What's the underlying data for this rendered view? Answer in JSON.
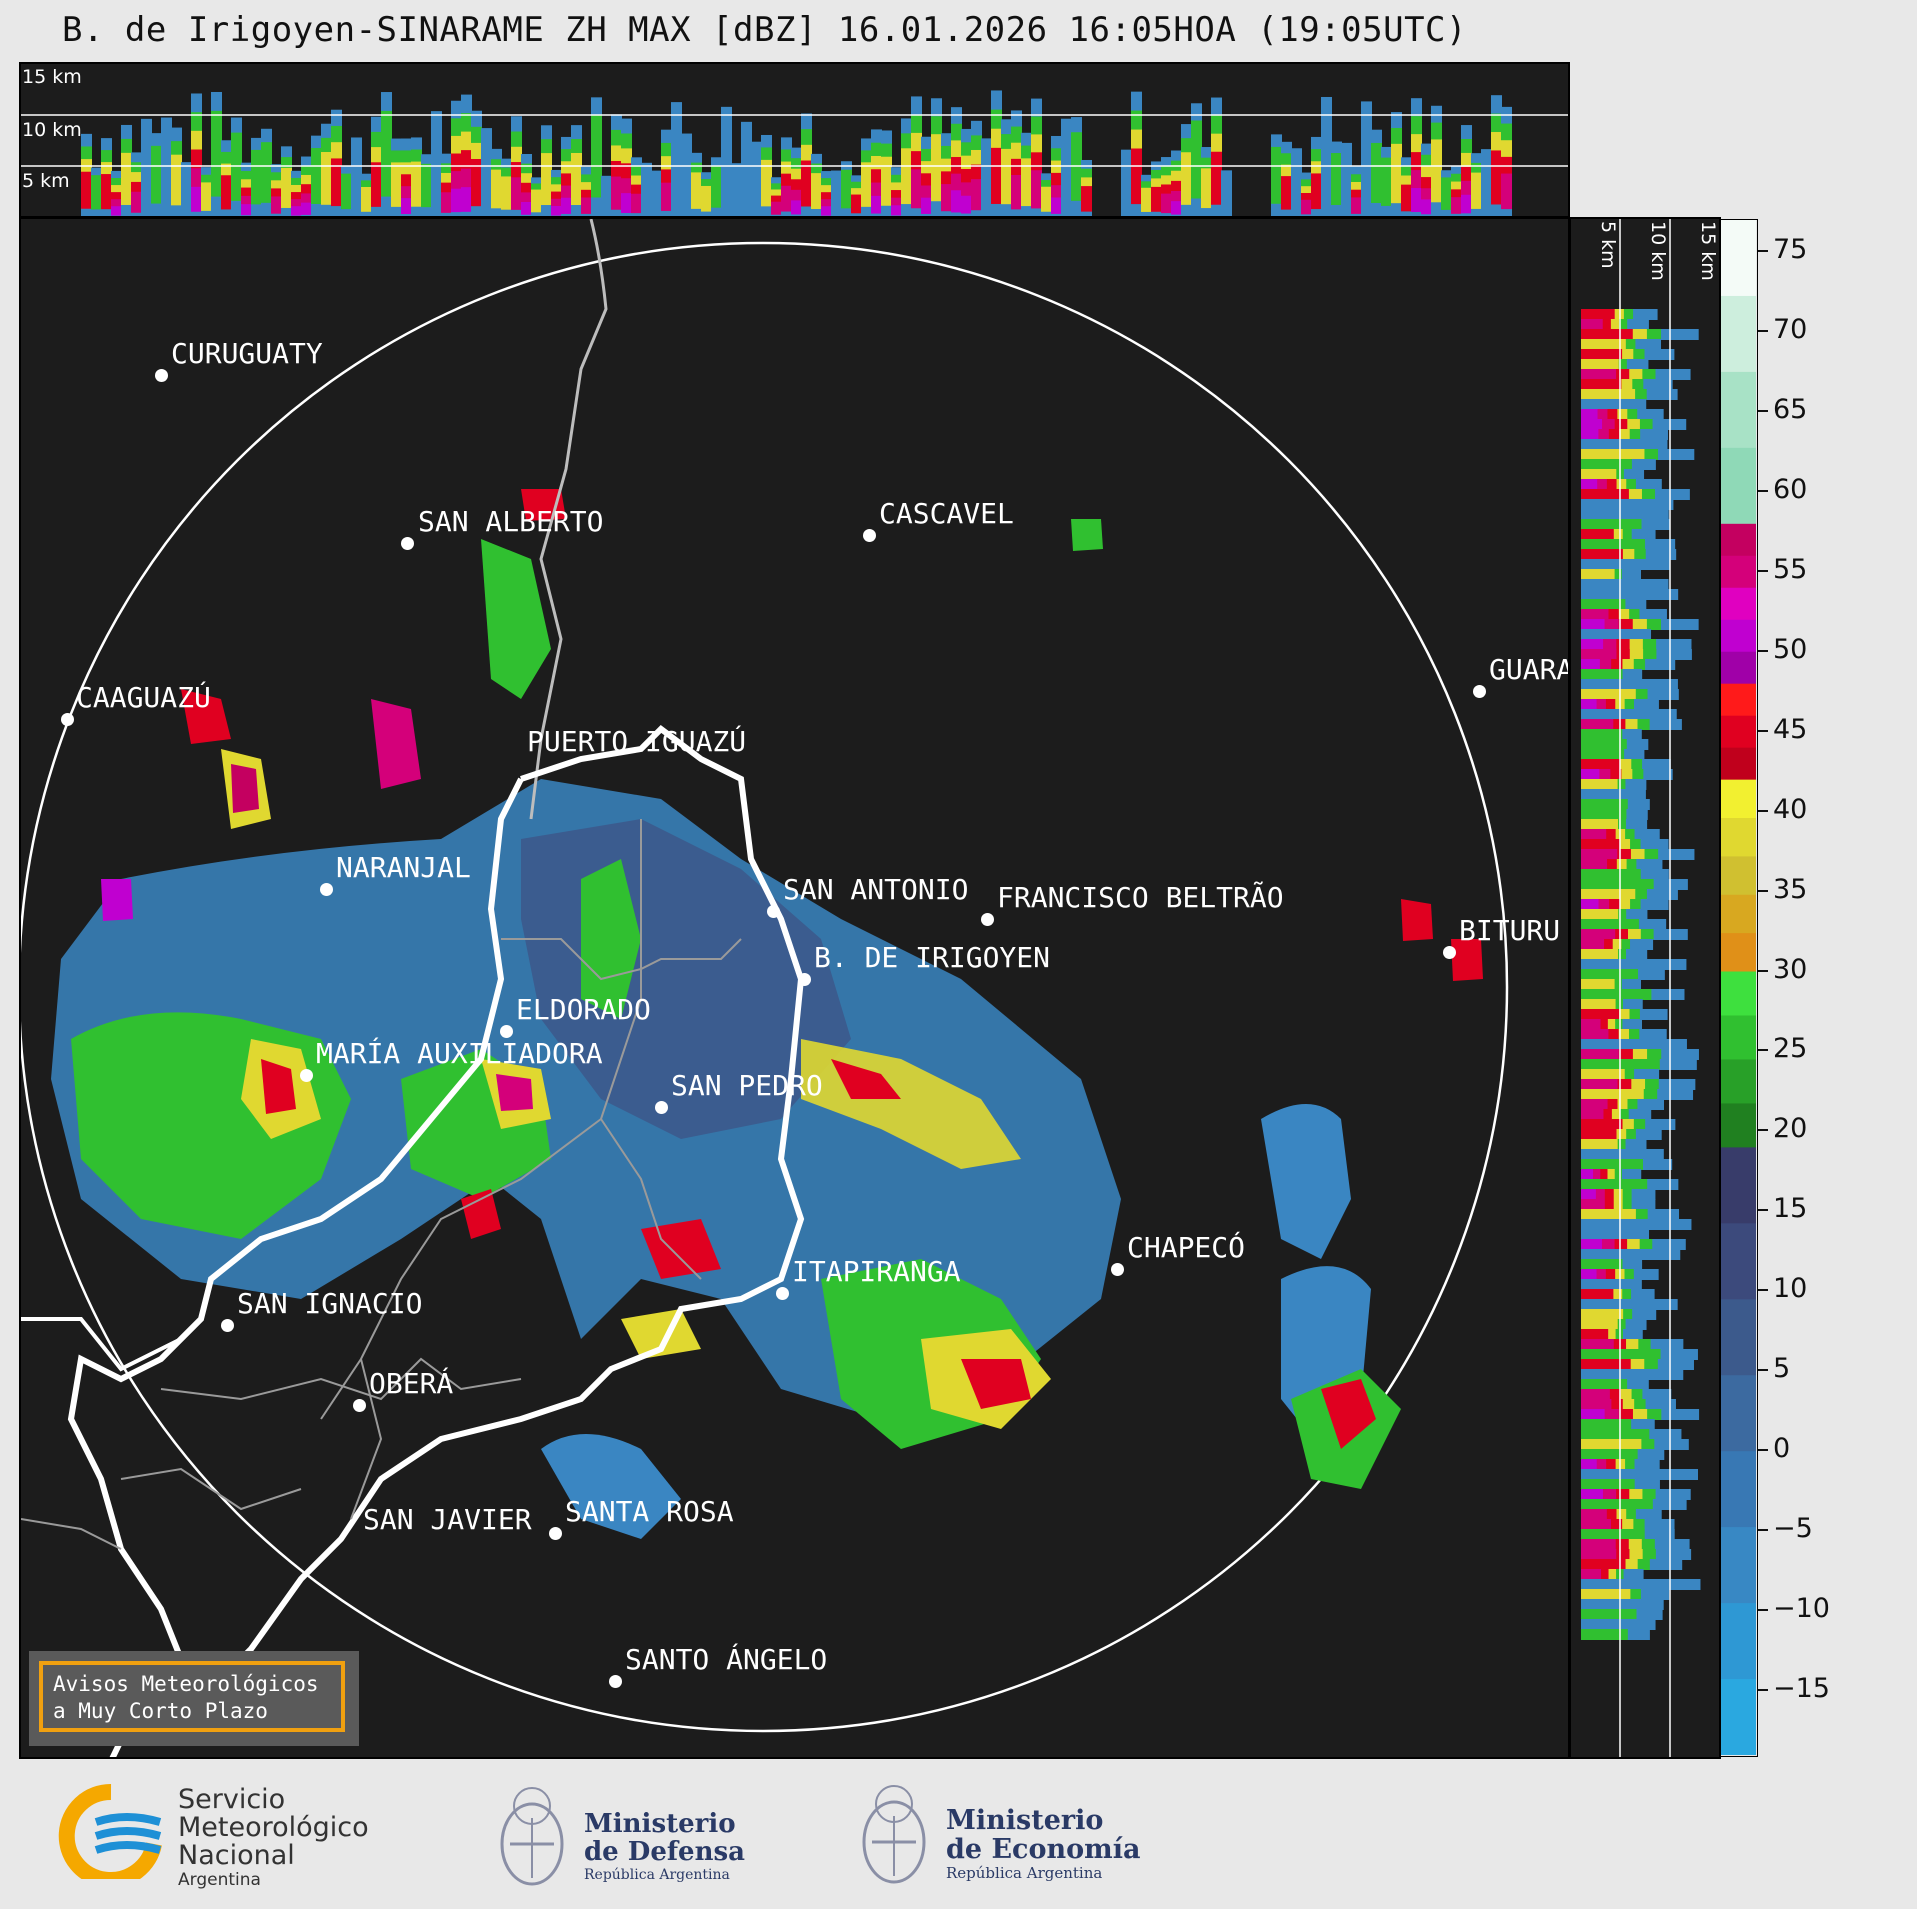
{
  "title": "B. de Irigoyen-SINARAME ZH MAX [dBZ] 16.01.2026 16:05HOA (19:05UTC)",
  "top_altitudes": [
    "15 km",
    "10 km",
    "5 km"
  ],
  "side_altitudes": [
    "5 km",
    "10 km",
    "15 km"
  ],
  "colorbar": {
    "ticks": [
      {
        "value": "75",
        "v": 75
      },
      {
        "value": "70",
        "v": 70
      },
      {
        "value": "65",
        "v": 65
      },
      {
        "value": "60",
        "v": 60
      },
      {
        "value": "55",
        "v": 55
      },
      {
        "value": "50",
        "v": 50
      },
      {
        "value": "45",
        "v": 45
      },
      {
        "value": "40",
        "v": 40
      },
      {
        "value": "35",
        "v": 35
      },
      {
        "value": "30",
        "v": 30
      },
      {
        "value": "25",
        "v": 25
      },
      {
        "value": "20",
        "v": 20
      },
      {
        "value": "15",
        "v": 15
      },
      {
        "value": "10",
        "v": 10
      },
      {
        "value": "5",
        "v": 5
      },
      {
        "value": "0",
        "v": 0
      },
      {
        "value": "−5",
        "v": -5
      },
      {
        "value": "−10",
        "v": -10
      },
      {
        "value": "−15",
        "v": -15
      }
    ],
    "range": [
      -19,
      77
    ],
    "bands": [
      {
        "from": 58,
        "to": 77,
        "colors": [
          "#f4fbf7",
          "#cdeedd",
          "#a8e2c6",
          "#8fd9b7"
        ]
      },
      {
        "from": 48,
        "to": 58,
        "colors": [
          "#c40060",
          "#d4007a",
          "#e000c0",
          "#c000d0",
          "#a000a8"
        ]
      },
      {
        "from": 42,
        "to": 48,
        "colors": [
          "#ff1a1a",
          "#e00020",
          "#c0001c"
        ]
      },
      {
        "from": 30,
        "to": 42,
        "colors": [
          "#f2f030",
          "#e0d830",
          "#d0c030",
          "#d8a820",
          "#e09018"
        ]
      },
      {
        "from": 19,
        "to": 30,
        "colors": [
          "#3ee03e",
          "#30c030",
          "#28a028",
          "#208020"
        ]
      },
      {
        "from": -19,
        "to": 19,
        "colors": [
          "#383c6a",
          "#3c4a7c",
          "#3c5a8c",
          "#3c6aa0",
          "#3878b4",
          "#3888c4",
          "#2e98d4",
          "#2aa8e0"
        ]
      }
    ]
  },
  "cities": [
    {
      "name": "CURUGUATY"
    },
    {
      "name": "SAN ALBERTO"
    },
    {
      "name": "CASCAVEL"
    },
    {
      "name": "CAAGUAZÚ"
    },
    {
      "name": "GUARA"
    },
    {
      "name": "PUERTO IGUAZÚ"
    },
    {
      "name": "NARANJAL"
    },
    {
      "name": "SAN ANTONIO"
    },
    {
      "name": "FRANCISCO BELTRÃO"
    },
    {
      "name": "BITURU"
    },
    {
      "name": "B. DE IRIGOYEN"
    },
    {
      "name": "ELDORADO"
    },
    {
      "name": "MARÍA AUXILIADORA"
    },
    {
      "name": "SAN PEDRO"
    },
    {
      "name": "CHAPECÓ"
    },
    {
      "name": "ITAPIRANGA"
    },
    {
      "name": "SAN IGNACIO"
    },
    {
      "name": "OBERÁ"
    },
    {
      "name": "SAN JAVIER"
    },
    {
      "name": "SANTA ROSA"
    },
    {
      "name": "SANTO ÁNGELO"
    }
  ],
  "avisos": {
    "line1": "Avisos Meteorológicos",
    "line2": "a Muy Corto Plazo"
  },
  "footer": {
    "smn": {
      "line1": "Servicio",
      "line2": "Meteorológico",
      "line3": "Nacional",
      "line4": "Argentina"
    },
    "defensa": {
      "line1": "Ministerio",
      "line2": "de Defensa",
      "line3": "República Argentina"
    },
    "economia": {
      "line1": "Ministerio",
      "line2": "de Economía",
      "line3": "República Argentina"
    }
  }
}
